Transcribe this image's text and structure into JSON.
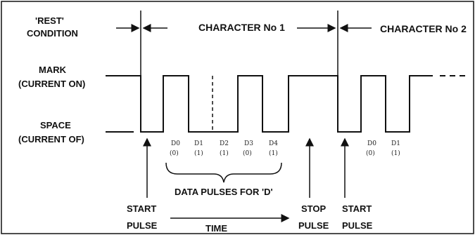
{
  "title_row": {
    "rest_label": "'REST'",
    "rest_label2": "CONDITION",
    "char1_label": "CHARACTER No 1",
    "char2_label": "CHARACTER No 2"
  },
  "levels": {
    "mark_label": "MARK",
    "mark_sub": "(CURRENT ON)",
    "space_label": "SPACE",
    "space_sub": "(CURRENT OF)"
  },
  "bits": [
    {
      "name": "D0",
      "val": "(0)"
    },
    {
      "name": "D1",
      "val": "(1)"
    },
    {
      "name": "D2",
      "val": "(1)"
    },
    {
      "name": "D3",
      "val": "(0)"
    },
    {
      "name": "D4",
      "val": "(1)"
    },
    {
      "name": "D0",
      "val": "(0)"
    },
    {
      "name": "D1",
      "val": "(1)"
    }
  ],
  "annotations": {
    "data_pulses": "DATA PULSES FOR 'D'",
    "start1_a": "START",
    "start1_b": "PULSE",
    "time": "TIME",
    "stop_a": "STOP",
    "stop_b": "PULSE",
    "start2_a": "START",
    "start2_b": "PULSE"
  },
  "colors": {
    "ink": "#111111",
    "background": "#ffffff"
  }
}
